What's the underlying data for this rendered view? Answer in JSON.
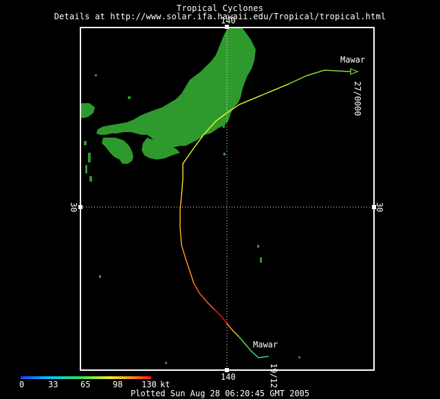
{
  "header": {
    "title": "Tropical Cyclones",
    "details": "Details at http://www.solar.ifa.hawaii.edu/Tropical/tropical.html"
  },
  "map": {
    "grid": {
      "top_longitude_label": "140",
      "bottom_longitude_label": "140",
      "left_latitude_label": "30",
      "right_latitude_label": "30"
    },
    "storm": {
      "name_start": "Mawar",
      "name_end": "Mawar",
      "start_time_label": "19/12",
      "end_time_label": "27/0000"
    },
    "colors": {
      "land": "#2e9a2e",
      "frame": "#ffffff",
      "background": "#000000"
    }
  },
  "intensity_scale": {
    "ticks": [
      "0",
      "33",
      "65",
      "98",
      "130"
    ],
    "unit": "kt",
    "colors": [
      "#1e3cff",
      "#00c8ff",
      "#30e060",
      "#f0f020",
      "#ff9020",
      "#ff1010"
    ]
  },
  "footer": {
    "plotted": "Plotted Sun Aug 28 06:20:45 GMT 2005"
  }
}
